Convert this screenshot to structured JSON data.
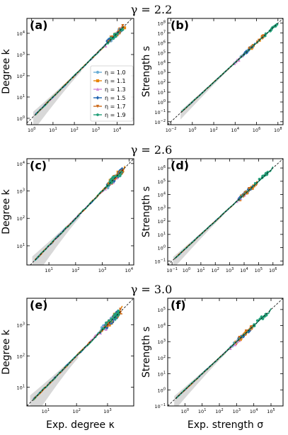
{
  "row_titles": [
    "γ = 2.2",
    "γ = 2.6",
    "γ = 3.0"
  ],
  "colors": {
    "1.0": "#6aaed6",
    "1.1": "#e8860c",
    "1.3": "#d28ad8",
    "1.5": "#1f63b0",
    "1.7": "#cc6a1b",
    "1.9": "#23a079"
  },
  "legend": {
    "entries": [
      "η = 1.0",
      "η = 1.1",
      "η = 1.3",
      "η = 1.5",
      "η = 1.7",
      "η = 1.9"
    ]
  },
  "chart_data": [
    {
      "panel": "(a)",
      "type": "scatter",
      "row_title": "γ = 2.2",
      "xlabel": "",
      "ylabel": "Degree k",
      "log": true,
      "xlim": [
        0.6,
        60000
      ],
      "ylim": [
        0.5,
        50000
      ],
      "xticks": [
        "10^0",
        "10^1",
        "10^2",
        "10^3",
        "10^4"
      ],
      "yticks": [
        "10^0",
        "10^1",
        "10^2",
        "10^3",
        "10^4"
      ],
      "reference_line": "y = x",
      "series": [
        {
          "name": "η = 1.0",
          "x_range": [
            1.5,
            20000
          ]
        },
        {
          "name": "η = 1.1",
          "x_range": [
            1.5,
            25000
          ]
        },
        {
          "name": "η = 1.3",
          "x_range": [
            1.5,
            15000
          ]
        },
        {
          "name": "η = 1.5",
          "x_range": [
            1.5,
            18000
          ]
        },
        {
          "name": "η = 1.7",
          "x_range": [
            1.5,
            22000
          ]
        },
        {
          "name": "η = 1.9",
          "x_range": [
            1.5,
            20000
          ]
        }
      ]
    },
    {
      "panel": "(b)",
      "type": "scatter",
      "row_title": "γ = 2.2",
      "xlabel": "",
      "ylabel": "Strength s",
      "log": true,
      "xlim": [
        0.005,
        300000000
      ],
      "ylim": [
        0.005,
        300000000
      ],
      "xticks": [
        "10^-2",
        "10^0",
        "10^2",
        "10^4",
        "10^6",
        "10^8"
      ],
      "yticks": [
        "10^-2",
        "10^-1",
        "10^0",
        "10^1",
        "10^2",
        "10^3",
        "10^4",
        "10^5",
        "10^6",
        "10^7",
        "10^8"
      ],
      "reference_line": "y = x",
      "series": [
        {
          "name": "η = 1.0",
          "x_range": [
            0.1,
            200000
          ]
        },
        {
          "name": "η = 1.1",
          "x_range": [
            0.1,
            5000000
          ]
        },
        {
          "name": "η = 1.3",
          "x_range": [
            0.1,
            100000
          ]
        },
        {
          "name": "η = 1.5",
          "x_range": [
            0.1,
            1000000
          ]
        },
        {
          "name": "η = 1.7",
          "x_range": [
            0.1,
            5000000
          ]
        },
        {
          "name": "η = 1.9",
          "x_range": [
            0.1,
            100000000
          ]
        }
      ]
    },
    {
      "panel": "(c)",
      "type": "scatter",
      "row_title": "γ = 2.6",
      "xlabel": "",
      "ylabel": "Degree k",
      "log": true,
      "xlim": [
        1.5,
        15000
      ],
      "ylim": [
        2,
        15000
      ],
      "xticks": [
        "10^1",
        "10^2",
        "10^3",
        "10^4"
      ],
      "yticks": [
        "10^1",
        "10^2",
        "10^3",
        "10^4"
      ],
      "reference_line": "y = x",
      "series": [
        {
          "name": "η = 1.0",
          "x_range": [
            3,
            6000
          ]
        },
        {
          "name": "η = 1.1",
          "x_range": [
            3,
            7000
          ]
        },
        {
          "name": "η = 1.3",
          "x_range": [
            3,
            5000
          ]
        },
        {
          "name": "η = 1.5",
          "x_range": [
            3,
            6000
          ]
        },
        {
          "name": "η = 1.7",
          "x_range": [
            3,
            6500
          ]
        },
        {
          "name": "η = 1.9",
          "x_range": [
            3,
            6000
          ]
        }
      ]
    },
    {
      "panel": "(d)",
      "type": "scatter",
      "row_title": "γ = 2.6",
      "xlabel": "",
      "ylabel": "Strength s",
      "log": true,
      "xlim": [
        0.05,
        5000000
      ],
      "ylim": [
        0.05,
        5000000
      ],
      "xticks": [
        "10^-1",
        "10^0",
        "10^1",
        "10^2",
        "10^3",
        "10^4",
        "10^5",
        "10^6"
      ],
      "yticks": [
        "10^-1",
        "10^0",
        "10^1",
        "10^2",
        "10^3",
        "10^4",
        "10^5",
        "10^6"
      ],
      "reference_line": "y = x",
      "series": [
        {
          "name": "η = 1.0",
          "x_range": [
            0.15,
            30000
          ]
        },
        {
          "name": "η = 1.1",
          "x_range": [
            0.15,
            50000
          ]
        },
        {
          "name": "η = 1.3",
          "x_range": [
            0.15,
            20000
          ]
        },
        {
          "name": "η = 1.5",
          "x_range": [
            0.15,
            40000
          ]
        },
        {
          "name": "η = 1.7",
          "x_range": [
            0.15,
            80000
          ]
        },
        {
          "name": "η = 1.9",
          "x_range": [
            0.15,
            1000000
          ]
        }
      ]
    },
    {
      "panel": "(e)",
      "type": "scatter",
      "row_title": "γ = 3.0",
      "xlabel": "Exp. degree κ",
      "ylabel": "Degree k",
      "log": true,
      "xlim": [
        2.5,
        7000
      ],
      "ylim": [
        2.5,
        7000
      ],
      "xticks": [
        "10^1",
        "10^2",
        "10^3"
      ],
      "yticks": [
        "10^1",
        "10^2",
        "10^3"
      ],
      "reference_line": "y = x",
      "series": [
        {
          "name": "η = 1.0",
          "x_range": [
            4,
            2000
          ]
        },
        {
          "name": "η = 1.1",
          "x_range": [
            4,
            3000
          ]
        },
        {
          "name": "η = 1.3",
          "x_range": [
            4,
            1500
          ]
        },
        {
          "name": "η = 1.5",
          "x_range": [
            4,
            2500
          ]
        },
        {
          "name": "η = 1.7",
          "x_range": [
            4,
            3000
          ]
        },
        {
          "name": "η = 1.9",
          "x_range": [
            4,
            2500
          ]
        }
      ]
    },
    {
      "panel": "(f)",
      "type": "scatter",
      "row_title": "γ = 3.0",
      "xlabel": "Exp. strength σ",
      "ylabel": "Strength s",
      "log": true,
      "xlim": [
        0.1,
        500000
      ],
      "ylim": [
        0.1,
        500000
      ],
      "xticks": [
        "10^0",
        "10^1",
        "10^2",
        "10^3",
        "10^4",
        "10^5"
      ],
      "yticks": [
        "10^-1",
        "10^0",
        "10^1",
        "10^2",
        "10^3",
        "10^4",
        "10^5"
      ],
      "reference_line": "y = x",
      "series": [
        {
          "name": "η = 1.0",
          "x_range": [
            0.3,
            3000
          ]
        },
        {
          "name": "η = 1.1",
          "x_range": [
            0.3,
            5000
          ]
        },
        {
          "name": "η = 1.3",
          "x_range": [
            0.3,
            2000
          ]
        },
        {
          "name": "η = 1.5",
          "x_range": [
            0.3,
            8000
          ]
        },
        {
          "name": "η = 1.7",
          "x_range": [
            0.3,
            10000
          ]
        },
        {
          "name": "η = 1.9",
          "x_range": [
            0.3,
            100000
          ]
        }
      ]
    }
  ]
}
